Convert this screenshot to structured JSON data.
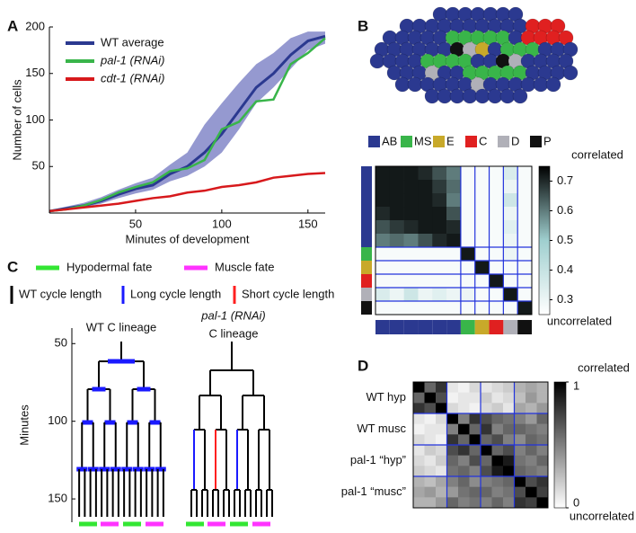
{
  "chart_data": [
    {
      "type": "line",
      "panel": "A",
      "xlabel": "Minutes of development",
      "ylabel": "Number of cells",
      "x": [
        0,
        10,
        20,
        30,
        40,
        50,
        60,
        70,
        80,
        90,
        100,
        110,
        120,
        130,
        140,
        150,
        160
      ],
      "xlim": [
        0,
        160
      ],
      "xticks": [
        50,
        100,
        150
      ],
      "ylim": [
        0,
        200
      ],
      "yticks": [
        50,
        100,
        150,
        200
      ],
      "legend": "upper-left",
      "series": [
        {
          "name": "WT average",
          "color": "#2b3990",
          "values": [
            2,
            5,
            8,
            13,
            20,
            26,
            30,
            42,
            50,
            65,
            85,
            110,
            135,
            150,
            170,
            185,
            190
          ]
        },
        {
          "name": "pal-1 (RNAi)",
          "color": "#39b54a",
          "values": [
            2,
            4,
            8,
            14,
            22,
            28,
            33,
            45,
            48,
            57,
            90,
            98,
            120,
            122,
            160,
            172,
            188
          ]
        },
        {
          "name": "cdt-1 (RNAi)",
          "color": "#d7191c",
          "values": [
            2,
            4,
            6,
            8,
            10,
            13,
            16,
            18,
            22,
            24,
            28,
            30,
            33,
            38,
            40,
            42,
            43
          ]
        }
      ],
      "wt_range": {
        "color": "#7b7fc4",
        "lower": [
          1,
          4,
          6,
          10,
          16,
          21,
          25,
          34,
          40,
          50,
          65,
          90,
          118,
          135,
          155,
          175,
          182
        ],
        "upper": [
          3,
          7,
          11,
          17,
          25,
          32,
          38,
          52,
          65,
          95,
          118,
          140,
          160,
          172,
          188,
          195,
          195
        ]
      }
    },
    {
      "type": "heatmap",
      "panel": "B",
      "legend": [
        {
          "name": "AB",
          "color": "#2b3990"
        },
        {
          "name": "MS",
          "color": "#39b54a"
        },
        {
          "name": "E",
          "color": "#c8a92a"
        },
        {
          "name": "C",
          "color": "#e02020"
        },
        {
          "name": "D",
          "color": "#b0b0b8"
        },
        {
          "name": "P",
          "color": "#111111"
        }
      ],
      "row_groups": [
        0,
        0,
        0,
        0,
        0,
        0,
        1,
        2,
        3,
        4,
        5
      ],
      "matrix": [
        [
          0.72,
          0.72,
          0.72,
          0.7,
          0.65,
          0.6,
          0.27,
          0.27,
          0.27,
          0.35,
          0.27
        ],
        [
          0.72,
          0.72,
          0.72,
          0.72,
          0.68,
          0.62,
          0.27,
          0.27,
          0.27,
          0.3,
          0.27
        ],
        [
          0.72,
          0.72,
          0.72,
          0.72,
          0.7,
          0.6,
          0.27,
          0.27,
          0.27,
          0.38,
          0.27
        ],
        [
          0.7,
          0.72,
          0.72,
          0.72,
          0.72,
          0.65,
          0.27,
          0.27,
          0.27,
          0.3,
          0.27
        ],
        [
          0.65,
          0.68,
          0.7,
          0.72,
          0.72,
          0.7,
          0.27,
          0.27,
          0.27,
          0.33,
          0.27
        ],
        [
          0.6,
          0.62,
          0.6,
          0.65,
          0.7,
          0.72,
          0.27,
          0.27,
          0.27,
          0.3,
          0.27
        ],
        [
          0.27,
          0.27,
          0.27,
          0.27,
          0.27,
          0.27,
          0.72,
          0.27,
          0.27,
          0.3,
          0.27
        ],
        [
          0.27,
          0.27,
          0.27,
          0.27,
          0.27,
          0.27,
          0.27,
          0.72,
          0.27,
          0.27,
          0.27
        ],
        [
          0.27,
          0.27,
          0.27,
          0.27,
          0.27,
          0.27,
          0.27,
          0.27,
          0.72,
          0.27,
          0.27
        ],
        [
          0.35,
          0.3,
          0.38,
          0.3,
          0.33,
          0.3,
          0.3,
          0.27,
          0.27,
          0.72,
          0.27
        ],
        [
          0.27,
          0.27,
          0.27,
          0.27,
          0.27,
          0.27,
          0.27,
          0.27,
          0.27,
          0.27,
          0.72
        ]
      ],
      "zlim": [
        0.25,
        0.75
      ],
      "zticks": [
        0.3,
        0.4,
        0.5,
        0.6,
        0.7
      ],
      "colormap": [
        "#ffffff",
        "#9fcfcf",
        "#000000"
      ],
      "high_label": "correlated",
      "low_label": "uncorrelated"
    },
    {
      "type": "lineage",
      "panel": "C",
      "ylabel": "Minutes",
      "ylim": [
        40,
        165
      ],
      "yticks": [
        50,
        100,
        150
      ],
      "fates": [
        {
          "name": "Hypodermal fate",
          "color": "#33e633"
        },
        {
          "name": "Muscle fate",
          "color": "#ff33ff"
        }
      ],
      "cycles": [
        {
          "name": "WT cycle length",
          "color": "#000000"
        },
        {
          "name": "Long cycle length",
          "color": "#1a1aff"
        },
        {
          "name": "Short cycle length",
          "color": "#ff2020"
        }
      ],
      "titles": [
        "WT C lineage",
        "pal-1 (RNAi)",
        "C lineage"
      ]
    },
    {
      "type": "heatmap",
      "panel": "D",
      "row_labels": [
        "WT hyp",
        "WT  musc",
        "pal-1 “hyp”",
        "pal-1 “musc”"
      ],
      "matrix": [
        [
          1.0,
          0.6,
          0.8,
          0.1,
          0.05,
          0.15,
          0.1,
          0.15,
          0.2,
          0.3,
          0.35,
          0.3
        ],
        [
          0.6,
          1.0,
          0.7,
          0.05,
          0.1,
          0.1,
          0.2,
          0.1,
          0.15,
          0.25,
          0.4,
          0.3
        ],
        [
          0.8,
          0.7,
          1.0,
          0.15,
          0.1,
          0.05,
          0.15,
          0.2,
          0.1,
          0.35,
          0.3,
          0.4
        ],
        [
          0.1,
          0.05,
          0.15,
          1.0,
          0.5,
          0.8,
          0.7,
          0.6,
          0.55,
          0.5,
          0.4,
          0.6
        ],
        [
          0.05,
          0.1,
          0.1,
          0.5,
          1.0,
          0.6,
          0.8,
          0.5,
          0.6,
          0.6,
          0.55,
          0.5
        ],
        [
          0.15,
          0.1,
          0.05,
          0.8,
          0.6,
          1.0,
          0.6,
          0.7,
          0.5,
          0.45,
          0.6,
          0.55
        ],
        [
          0.1,
          0.2,
          0.15,
          0.7,
          0.8,
          0.6,
          1.0,
          0.6,
          0.7,
          0.5,
          0.6,
          0.5
        ],
        [
          0.15,
          0.1,
          0.2,
          0.6,
          0.5,
          0.7,
          0.6,
          1.0,
          0.9,
          0.55,
          0.5,
          0.6
        ],
        [
          0.2,
          0.15,
          0.1,
          0.55,
          0.6,
          0.5,
          0.7,
          0.9,
          1.0,
          0.6,
          0.55,
          0.5
        ],
        [
          0.3,
          0.25,
          0.35,
          0.5,
          0.6,
          0.45,
          0.5,
          0.55,
          0.6,
          1.0,
          0.7,
          0.8
        ],
        [
          0.35,
          0.4,
          0.3,
          0.4,
          0.55,
          0.6,
          0.6,
          0.5,
          0.55,
          0.7,
          1.0,
          0.75
        ],
        [
          0.3,
          0.3,
          0.4,
          0.6,
          0.5,
          0.55,
          0.5,
          0.6,
          0.5,
          0.8,
          0.75,
          1.0
        ]
      ],
      "zlim": [
        0,
        1
      ],
      "zticks": [
        0,
        1
      ],
      "colormap": [
        "#ffffff",
        "#000000"
      ],
      "high_label": "correlated",
      "low_label": "uncorrelated"
    }
  ]
}
